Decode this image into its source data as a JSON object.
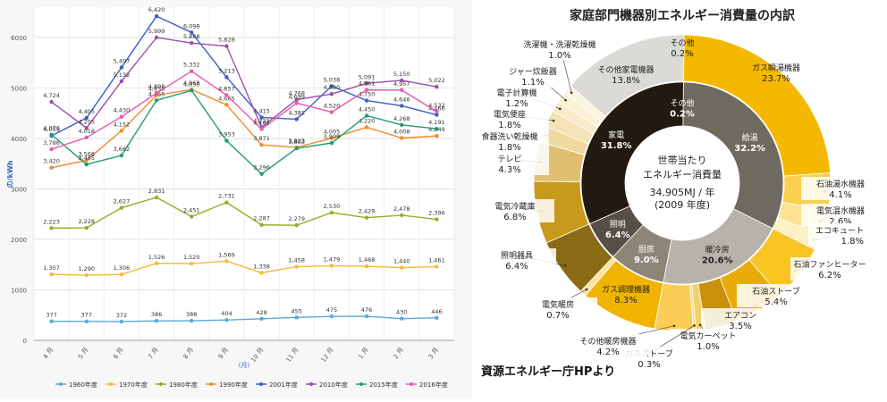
{
  "chart_data": [
    {
      "type": "line",
      "ylabel": "の/kWh",
      "xlabel": "(月)",
      "ylim": [
        0,
        6600
      ],
      "yticks": [
        0,
        1000,
        2000,
        3000,
        4000,
        5000,
        6000
      ],
      "categories": [
        "4 月",
        "5 月",
        "6 月",
        "7 月",
        "8 月",
        "9 月",
        "10 月",
        "11 月",
        "12 月",
        "1 月",
        "2 月",
        "3 月"
      ],
      "grid": true,
      "legend": "bottom",
      "series": [
        {
          "name": "1960年度",
          "color": "#5aa7e0",
          "values": [
            377,
            377,
            372,
            386,
            388,
            404,
            428,
            455,
            475,
            476,
            430,
            446
          ]
        },
        {
          "name": "1970年度",
          "color": "#f5b93a",
          "values": [
            1307,
            1290,
            1306,
            1526,
            1520,
            1569,
            1338,
            1458,
            1479,
            1468,
            1440,
            1461
          ]
        },
        {
          "name": "1980年度",
          "color": "#8db124",
          "values": [
            2223,
            2228,
            2627,
            2831,
            2451,
            2731,
            2287,
            2279,
            2530,
            2429,
            2478,
            2396
          ]
        },
        {
          "name": "1990年度",
          "color": "#f08a2c",
          "values": [
            3420,
            3566,
            4152,
            4855,
            4968,
            4665,
            3871,
            3823,
            4005,
            4220,
            4008,
            4049
          ]
        },
        {
          "name": "2001年度",
          "color": "#3a5fc8",
          "values": [
            4053,
            4405,
            5407,
            6420,
            6098,
            5213,
            4415,
            4381,
            5038,
            4750,
            4646,
            4466
          ]
        },
        {
          "name": "2010年度",
          "color": "#9a4fb0",
          "values": [
            4724,
            4205,
            5132,
            5999,
            5888,
            5828,
            4221,
            4768,
            4880,
            5091,
            5150,
            5022
          ]
        },
        {
          "name": "2015年度",
          "color": "#1f9e6e",
          "values": [
            4076,
            3485,
            3662,
            4755,
            4950,
            3953,
            3296,
            3803,
            3909,
            4450,
            4268,
            4191
          ]
        },
        {
          "name": "2016年度",
          "color": "#ee56b0",
          "values": [
            3786,
            4018,
            4430,
            4898,
            5332,
            4857,
            4185,
            4699,
            4520,
            4961,
            4957,
            4532
          ]
        }
      ],
      "legend_labels": [
        "1960年度",
        "1970年度",
        "1980年度",
        "1990年度",
        "2001年度",
        "2010年度",
        "2015年度",
        "2016年度"
      ]
    },
    {
      "type": "pie",
      "title": "家庭部門機器別エネルギー消費量の内訳",
      "center_lines": [
        "世帯当たり",
        "エネルギー消費量",
        "34,905MJ / 年",
        "(2009 年度)"
      ],
      "source": "資源エネルギー庁HPより",
      "inner": [
        {
          "label": "その他",
          "value": 0.2,
          "color": "#3a3a3a"
        },
        {
          "label": "給湯",
          "value": 32.2,
          "color": "#6f6a60"
        },
        {
          "label": "暖冷房",
          "value": 20.6,
          "color": "#b8b3aa"
        },
        {
          "label": "厨房",
          "value": 9.0,
          "color": "#8c8578"
        },
        {
          "label": "照明",
          "value": 6.4,
          "color": "#554f46"
        },
        {
          "label": "家電",
          "value": 31.8,
          "color": "#221a10"
        }
      ],
      "outer": [
        {
          "label": "その他",
          "value": 0.2,
          "color": "#c9c6c0"
        },
        {
          "label": "ガス瞬湯機器",
          "value": 23.7,
          "color": "#f5b800"
        },
        {
          "label": "石油湯水機器",
          "value": 4.1,
          "color": "#f9d050"
        },
        {
          "label": "電気温水機器",
          "value": 2.6,
          "color": "#fbe38f"
        },
        {
          "label": "エコキュート",
          "value": 1.8,
          "color": "#fdf0c4"
        },
        {
          "label": "石油ファンヒーター",
          "value": 6.2,
          "color": "#f8c525"
        },
        {
          "label": "石油ストーブ",
          "value": 5.4,
          "color": "#e8ab0a"
        },
        {
          "label": "エアコン",
          "value": 3.5,
          "color": "#c9900a"
        },
        {
          "label": "電気カーペット",
          "value": 1.0,
          "color": "#f3d06a"
        },
        {
          "label": "ガスストーブ",
          "value": 0.3,
          "color": "#f7dc8a"
        },
        {
          "label": "その他暖房機器",
          "value": 4.2,
          "color": "#fbcd55"
        },
        {
          "label": "ガス調理機器",
          "value": 8.3,
          "color": "#f0b400"
        },
        {
          "label": "電気暖房",
          "value": 0.7,
          "color": "#fbe2a0"
        },
        {
          "label": "照明器具",
          "value": 6.4,
          "color": "#8a6a14"
        },
        {
          "label": "電気冷蔵庫",
          "value": 6.8,
          "color": "#c79a1c"
        },
        {
          "label": "テレビ",
          "value": 4.3,
          "color": "#e0c070"
        },
        {
          "label": "食器洗い乾燥機",
          "value": 1.8,
          "color": "#efd9a0"
        },
        {
          "label": "電気便座",
          "value": 1.8,
          "color": "#f4e3b6"
        },
        {
          "label": "電子計算機",
          "value": 1.2,
          "color": "#f7ebc8"
        },
        {
          "label": "ジャー炊飯器",
          "value": 1.1,
          "color": "#f9f0d6"
        },
        {
          "label": "洗濯機・洗濯乾燥機",
          "value": 1.0,
          "color": "#fbf4e2"
        },
        {
          "label": "その他家電機器",
          "value": 13.8,
          "color": "#dcdad6"
        }
      ]
    }
  ]
}
